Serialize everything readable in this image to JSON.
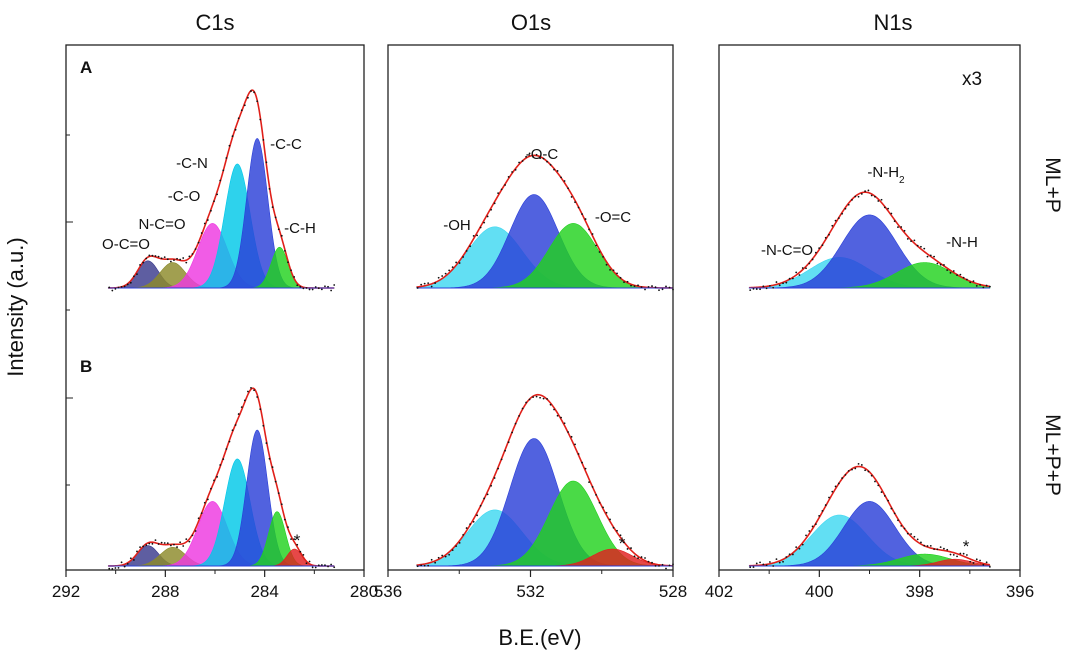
{
  "figure": {
    "ylabel": "Intensity (a.u.)",
    "xlabel": "B.E.(eV)",
    "row_labels": [
      "ML+P",
      "ML+P+P"
    ],
    "panel_letters": [
      "A",
      "B"
    ]
  },
  "colors": {
    "envelope": "#e0201a",
    "data_points": "#111111",
    "light_blue": "#3fd8f0",
    "cyan": "#00c8e8",
    "blue": "#2b3fd8",
    "magenta": "#ee38e0",
    "green": "#22d21e",
    "navy": "#3a3a8c",
    "olive": "#8c8a2a",
    "red": "#e02020"
  },
  "chart_data": [
    {
      "type": "area",
      "title": "C1s",
      "x_unit": "eV",
      "xlim": [
        292,
        280
      ],
      "xticks": [
        292,
        288,
        284,
        280
      ],
      "rows": [
        {
          "row": "ML+P",
          "panel": "A",
          "peaks": [
            {
              "name": "O-C=O",
              "center": 288.7,
              "height": 0.16,
              "fwhm": 1.0,
              "color": "navy"
            },
            {
              "name": "N-C=O",
              "center": 287.7,
              "height": 0.15,
              "fwhm": 1.2,
              "color": "olive"
            },
            {
              "name": "-C-O",
              "center": 286.1,
              "height": 0.38,
              "fwhm": 1.4,
              "color": "magenta"
            },
            {
              "name": "-C-N",
              "center": 285.1,
              "height": 0.73,
              "fwhm": 1.2,
              "color": "cyan"
            },
            {
              "name": "-C-C",
              "center": 284.3,
              "height": 0.88,
              "fwhm": 1.0,
              "color": "blue"
            },
            {
              "name": "-C-H",
              "center": 283.4,
              "height": 0.24,
              "fwhm": 0.8,
              "color": "green"
            }
          ],
          "labels": [
            "O-C=O",
            "N-C=O",
            "-C-O",
            "-C-N",
            "-C-C",
            "-C-H"
          ]
        },
        {
          "row": "ML+P+P",
          "panel": "B",
          "peaks": [
            {
              "name": "O-C=O",
              "center": 288.7,
              "height": 0.12,
              "fwhm": 1.0,
              "color": "navy"
            },
            {
              "name": "N-C=O",
              "center": 287.7,
              "height": 0.11,
              "fwhm": 1.2,
              "color": "olive"
            },
            {
              "name": "-C-O",
              "center": 286.1,
              "height": 0.38,
              "fwhm": 1.4,
              "color": "magenta"
            },
            {
              "name": "-C-N",
              "center": 285.1,
              "height": 0.63,
              "fwhm": 1.2,
              "color": "cyan"
            },
            {
              "name": "-C-C",
              "center": 284.3,
              "height": 0.8,
              "fwhm": 1.0,
              "color": "blue"
            },
            {
              "name": "-C-H",
              "center": 283.5,
              "height": 0.32,
              "fwhm": 0.8,
              "color": "green"
            },
            {
              "name": "*",
              "center": 282.8,
              "height": 0.1,
              "fwhm": 0.7,
              "color": "red"
            }
          ],
          "labels": [
            "*"
          ]
        }
      ]
    },
    {
      "type": "area",
      "title": "O1s",
      "x_unit": "eV",
      "xlim": [
        536,
        528
      ],
      "xticks": [
        536,
        532,
        528
      ],
      "rows": [
        {
          "row": "ML+P",
          "panel": "A",
          "peaks": [
            {
              "name": "-OH",
              "center": 533.0,
              "height": 0.36,
              "fwhm": 1.8,
              "color": "light_blue"
            },
            {
              "name": "-O-C",
              "center": 531.9,
              "height": 0.55,
              "fwhm": 1.6,
              "color": "blue"
            },
            {
              "name": "-O=C",
              "center": 530.8,
              "height": 0.38,
              "fwhm": 1.6,
              "color": "green"
            }
          ],
          "labels": [
            "-OH",
            "-O-C",
            "-O=C"
          ]
        },
        {
          "row": "ML+P+P",
          "panel": "B",
          "peaks": [
            {
              "name": "-OH",
              "center": 533.0,
              "height": 0.33,
              "fwhm": 1.8,
              "color": "light_blue"
            },
            {
              "name": "-O-C",
              "center": 531.9,
              "height": 0.75,
              "fwhm": 1.6,
              "color": "blue"
            },
            {
              "name": "-O=C",
              "center": 530.8,
              "height": 0.5,
              "fwhm": 1.6,
              "color": "green"
            },
            {
              "name": "*",
              "center": 529.7,
              "height": 0.1,
              "fwhm": 1.3,
              "color": "red"
            }
          ],
          "labels": [
            "*"
          ]
        }
      ]
    },
    {
      "type": "area",
      "title": "N1s",
      "x_unit": "eV",
      "xlim": [
        402,
        396
      ],
      "xticks": [
        402,
        400,
        398,
        396
      ],
      "annotation": "x3",
      "rows": [
        {
          "row": "ML+P",
          "panel": "A",
          "peaks": [
            {
              "name": "-N-C=O",
              "center": 399.6,
              "height": 0.18,
              "fwhm": 1.4,
              "color": "light_blue"
            },
            {
              "name": "-N-H2",
              "center": 399.0,
              "height": 0.43,
              "fwhm": 1.3,
              "color": "blue"
            },
            {
              "name": "-N-H",
              "center": 397.9,
              "height": 0.15,
              "fwhm": 1.3,
              "color": "green"
            }
          ],
          "labels": [
            "-N-C=O",
            "-N-H2",
            "-N-H"
          ]
        },
        {
          "row": "ML+P+P",
          "panel": "B",
          "peaks": [
            {
              "name": "-N-C=O",
              "center": 399.6,
              "height": 0.3,
              "fwhm": 1.3,
              "color": "light_blue"
            },
            {
              "name": "-N-H2",
              "center": 399.0,
              "height": 0.38,
              "fwhm": 1.2,
              "color": "blue"
            },
            {
              "name": "-N-H",
              "center": 397.9,
              "height": 0.07,
              "fwhm": 1.2,
              "color": "green"
            },
            {
              "name": "*",
              "center": 397.3,
              "height": 0.04,
              "fwhm": 0.8,
              "color": "red"
            }
          ],
          "labels": [
            "*"
          ]
        }
      ]
    }
  ]
}
